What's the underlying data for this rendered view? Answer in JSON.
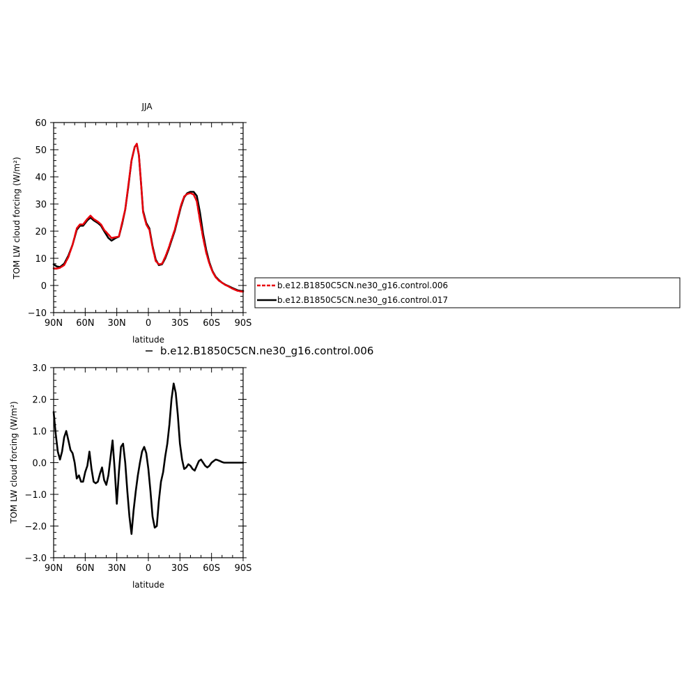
{
  "chart_data": [
    {
      "type": "line",
      "title": "JJA",
      "xlabel": "latitude",
      "ylabel": "TOM LW cloud forcing (W/m²)",
      "xlim": [
        90,
        -90
      ],
      "ylim": [
        -10,
        60
      ],
      "xticks": [
        90,
        60,
        30,
        0,
        -30,
        -60,
        -90
      ],
      "xtick_labels": [
        "90N",
        "60N",
        "30N",
        "0",
        "30S",
        "60S",
        "90S"
      ],
      "yticks": [
        -10,
        0,
        10,
        20,
        30,
        40,
        50,
        60
      ],
      "ytick_labels": [
        "−10",
        "0",
        "10",
        "20",
        "30",
        "40",
        "50",
        "60"
      ],
      "legend": "right",
      "series": [
        {
          "name": "b.e12.B1850C5CN.ne30_g16.control.006",
          "color": "#e8000b",
          "x": [
            90,
            87,
            84,
            80,
            76,
            72,
            68,
            65,
            62,
            58,
            55,
            52,
            48,
            45,
            42,
            38,
            35,
            31,
            28,
            25,
            22,
            19,
            16,
            13,
            11,
            9,
            7,
            5,
            2,
            -1,
            -4,
            -7,
            -10,
            -13,
            -16,
            -19,
            -22,
            -25,
            -28,
            -31,
            -34,
            -37,
            -40,
            -43,
            -46,
            -49,
            -52,
            -55,
            -58,
            -61,
            -64,
            -67,
            -70,
            -73,
            -76,
            -79,
            -82,
            -85,
            -88,
            -90
          ],
          "y": [
            6.3,
            6.2,
            6.5,
            7.5,
            10.5,
            15,
            21,
            22.5,
            22.5,
            24.5,
            25.7,
            24.5,
            23.5,
            22.5,
            20.5,
            18.8,
            17.5,
            17.8,
            18,
            23,
            28,
            37,
            46,
            51,
            52.2,
            48,
            38,
            27,
            22.5,
            20.5,
            14,
            9,
            7.8,
            8,
            10.5,
            13.5,
            17,
            20.5,
            25,
            29.5,
            32.8,
            33.7,
            34,
            33.5,
            31,
            24,
            17.5,
            12,
            8,
            5,
            3,
            1.8,
            1,
            0.2,
            -0.3,
            -1,
            -1.5,
            -2,
            -2.2,
            -2.3
          ]
        },
        {
          "name": "b.e12.B1850C5CN.ne30_g16.control.017",
          "color": "#000000",
          "x": [
            90,
            87,
            84,
            80,
            76,
            72,
            68,
            65,
            62,
            58,
            55,
            52,
            48,
            45,
            42,
            38,
            35,
            31,
            28,
            25,
            22,
            19,
            16,
            13,
            11,
            9,
            7,
            5,
            2,
            -1,
            -4,
            -7,
            -10,
            -13,
            -16,
            -19,
            -22,
            -25,
            -28,
            -31,
            -34,
            -37,
            -40,
            -43,
            -46,
            -49,
            -52,
            -55,
            -58,
            -61,
            -64,
            -67,
            -70,
            -73,
            -76,
            -79,
            -82,
            -85,
            -88,
            -90
          ],
          "y": [
            7.8,
            7,
            6.8,
            8,
            11,
            15,
            20.5,
            22,
            22,
            24,
            25,
            24,
            23,
            22,
            20,
            17.5,
            16.5,
            17.5,
            18,
            22.5,
            28,
            36.5,
            46,
            51,
            52,
            48,
            38,
            27.5,
            23,
            21,
            14.5,
            9.5,
            7.5,
            7.8,
            10,
            13,
            16.5,
            20,
            24.5,
            29,
            32.5,
            34,
            34.5,
            34.5,
            33,
            27,
            19,
            13,
            8.5,
            5.2,
            3.2,
            2,
            1,
            0.3,
            -0.2,
            -0.8,
            -1.3,
            -1.8,
            -2,
            -2
          ]
        }
      ]
    },
    {
      "type": "line",
      "title": "b.e12.B1850C5CN.ne30_g16.control.006",
      "xlabel": "latitude",
      "ylabel": "TOM LW cloud forcing (W/m²)",
      "xlim": [
        90,
        -90
      ],
      "ylim": [
        -3,
        3
      ],
      "xticks": [
        90,
        60,
        30,
        0,
        -30,
        -60,
        -90
      ],
      "xtick_labels": [
        "90N",
        "60N",
        "30N",
        "0",
        "30S",
        "60S",
        "90S"
      ],
      "yticks": [
        -3,
        -2,
        -1,
        0,
        1,
        2,
        3
      ],
      "ytick_labels": [
        "−3.0",
        "−2.0",
        "−1.0",
        "0.0",
        "1.0",
        "2.0",
        "3.0"
      ],
      "series": [
        {
          "color": "#000000",
          "x": [
            90,
            88,
            86,
            84,
            82,
            80,
            78,
            76,
            74,
            72,
            70,
            68,
            66,
            64,
            62,
            60,
            58,
            56,
            54,
            52,
            50,
            48,
            46,
            44,
            42,
            40,
            38,
            36,
            34,
            32,
            30,
            28,
            26,
            24,
            22,
            20,
            18,
            16,
            14,
            12,
            10,
            8,
            6,
            4,
            2,
            0,
            -2,
            -4,
            -6,
            -8,
            -10,
            -12,
            -14,
            -16,
            -18,
            -20,
            -22,
            -24,
            -26,
            -28,
            -30,
            -32,
            -34,
            -36,
            -38,
            -40,
            -42,
            -44,
            -46,
            -48,
            -50,
            -52,
            -54,
            -56,
            -58,
            -60,
            -62,
            -64,
            -66,
            -68,
            -70,
            -72,
            -74,
            -76,
            -78,
            -80,
            -82,
            -84,
            -86,
            -88,
            -90
          ],
          "y": [
            1.6,
            0.9,
            0.35,
            0.1,
            0.35,
            0.8,
            1.0,
            0.7,
            0.4,
            0.3,
            0.0,
            -0.5,
            -0.4,
            -0.6,
            -0.6,
            -0.3,
            -0.1,
            0.35,
            -0.2,
            -0.6,
            -0.65,
            -0.6,
            -0.35,
            -0.15,
            -0.55,
            -0.7,
            -0.4,
            0.15,
            0.7,
            -0.2,
            -1.3,
            -0.3,
            0.5,
            0.6,
            0.0,
            -0.9,
            -1.7,
            -2.25,
            -1.5,
            -0.9,
            -0.4,
            0.0,
            0.35,
            0.5,
            0.3,
            -0.2,
            -0.9,
            -1.7,
            -2.05,
            -2.0,
            -1.2,
            -0.6,
            -0.3,
            0.2,
            0.6,
            1.2,
            2.0,
            2.5,
            2.2,
            1.5,
            0.6,
            0.1,
            -0.2,
            -0.15,
            -0.05,
            -0.1,
            -0.2,
            -0.25,
            -0.1,
            0.05,
            0.1,
            0.0,
            -0.1,
            -0.15,
            -0.1,
            0.0,
            0.05,
            0.1,
            0.08,
            0.05,
            0.02,
            0.0,
            0.0,
            0.0,
            0.0,
            0.0,
            0.0,
            0.0,
            0.0,
            0.0,
            0.0
          ]
        }
      ]
    }
  ]
}
